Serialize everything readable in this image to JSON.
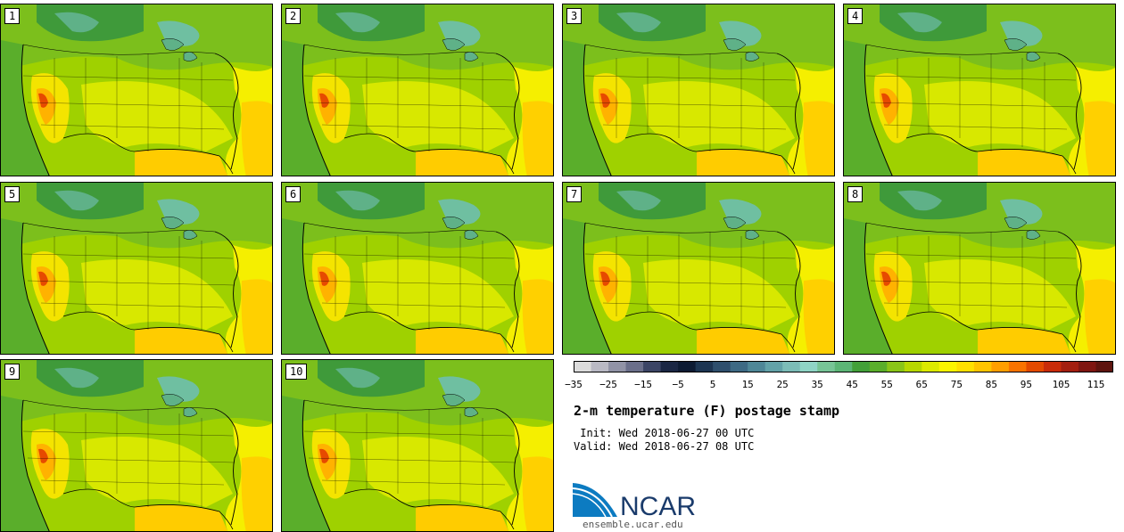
{
  "panels": [
    "1",
    "2",
    "3",
    "4",
    "5",
    "6",
    "7",
    "8",
    "9",
    "10"
  ],
  "colorbar": {
    "colors": [
      "#dcdcdc",
      "#b9b9c4",
      "#9193a6",
      "#6b6f8a",
      "#3c4565",
      "#1b2744",
      "#0d1b33",
      "#1d3552",
      "#2f4f6d",
      "#3e6a84",
      "#4f8797",
      "#63a2a8",
      "#7cbcb7",
      "#8fd4c5",
      "#77c496",
      "#5cb576",
      "#43a039",
      "#5aae2b",
      "#8ac518",
      "#b7d800",
      "#dcea00",
      "#fbf500",
      "#ffe000",
      "#ffc400",
      "#ff9e00",
      "#f97300",
      "#e34a00",
      "#c92c09",
      "#a31f0f",
      "#7f1610",
      "#5e140e"
    ],
    "tick_labels": [
      "−35",
      "−25",
      "−15",
      "−5",
      "5",
      "15",
      "25",
      "35",
      "45",
      "55",
      "65",
      "75",
      "85",
      "95",
      "105",
      "115"
    ]
  },
  "title": "2-m temperature (F) postage stamp",
  "init_line": " Init: Wed 2018-06-27 00 UTC",
  "valid_line": "Valid: Wed 2018-06-27 08 UTC",
  "logo": {
    "text": "NCAR",
    "brand_blue": "#0c7bc1",
    "text_color": "#1a3b6b"
  },
  "website": "ensemble.ucar.edu"
}
